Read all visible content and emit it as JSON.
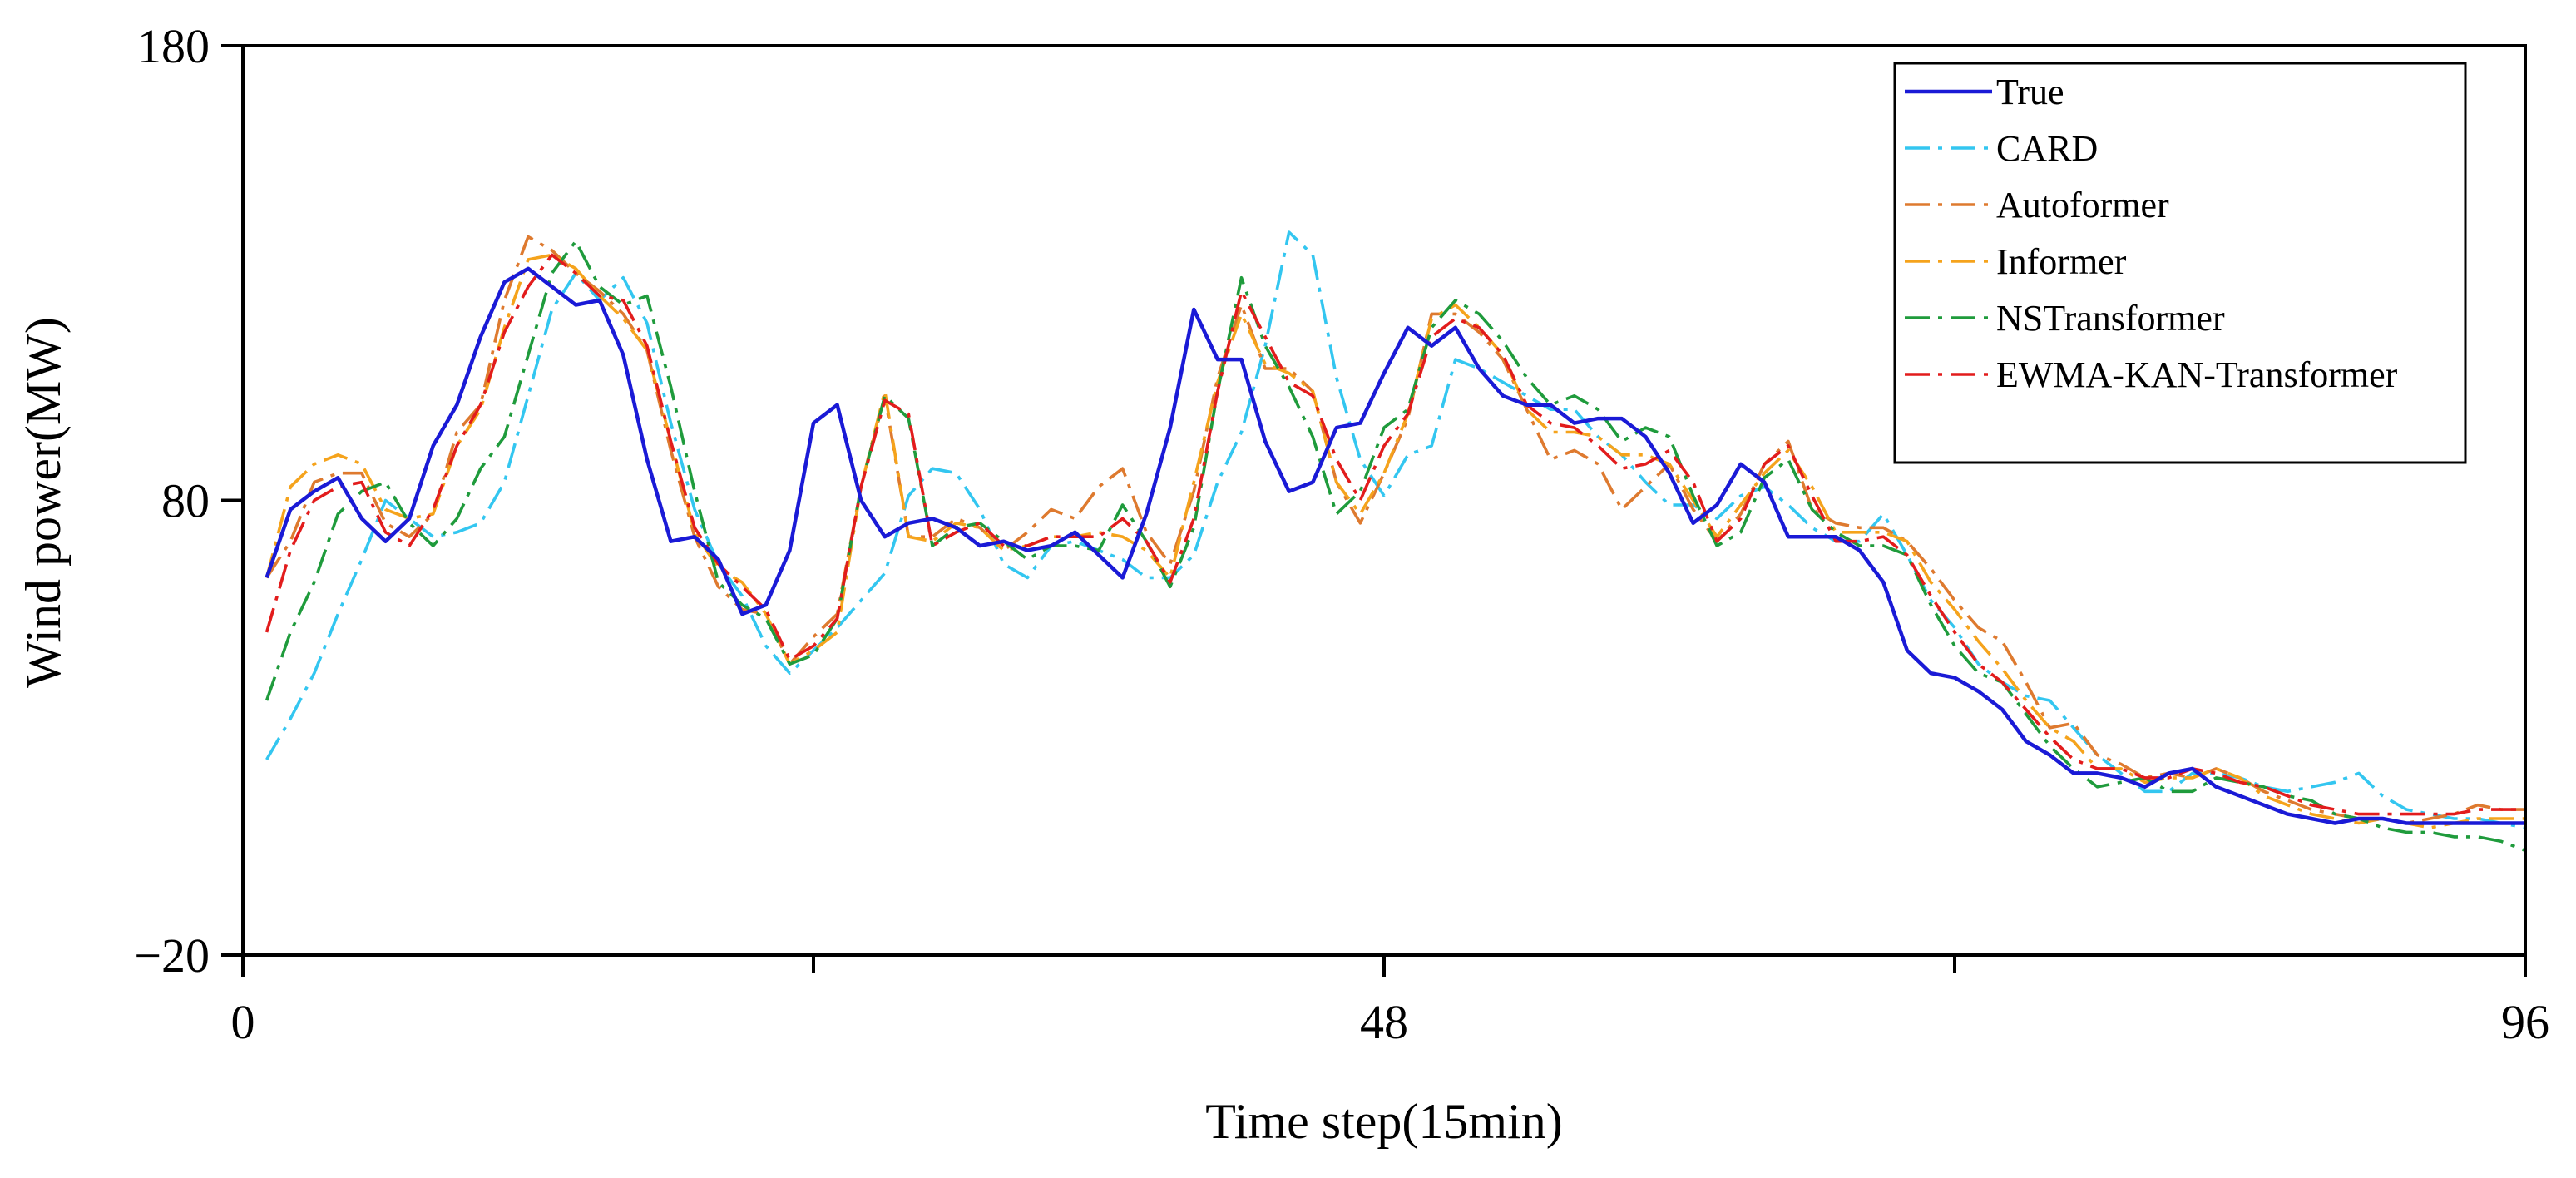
{
  "chart_data": {
    "type": "line",
    "title": "",
    "xlabel": "Time step(15min)",
    "ylabel": "Wind power(MW)",
    "xlim": [
      0,
      96
    ],
    "ylim": [
      -20,
      180
    ],
    "x_major_ticks": [
      0,
      48,
      96
    ],
    "x_minor_ticks": [
      24,
      72
    ],
    "y_major_ticks": [
      -20,
      80,
      180
    ],
    "x_tick_labels": [
      "0",
      "48",
      "96"
    ],
    "y_tick_labels": [
      "−20",
      "80",
      "180"
    ],
    "legend_position": "top-right",
    "grid": false,
    "x": [
      1,
      2,
      3,
      4,
      5,
      6,
      7,
      8,
      9,
      10,
      11,
      12,
      13,
      14,
      15,
      16,
      17,
      18,
      19,
      20,
      21,
      22,
      23,
      24,
      25,
      26,
      27,
      28,
      29,
      30,
      31,
      32,
      33,
      34,
      35,
      36,
      37,
      38,
      39,
      40,
      41,
      42,
      43,
      44,
      45,
      46,
      47,
      48,
      49,
      50,
      51,
      52,
      53,
      54,
      55,
      56,
      57,
      58,
      59,
      60,
      61,
      62,
      63,
      64,
      65,
      66,
      67,
      68,
      69,
      70,
      71,
      72,
      73,
      74,
      75,
      76,
      77,
      78,
      79,
      80,
      81,
      82,
      83,
      84,
      85,
      86,
      87,
      88,
      89,
      90,
      91,
      92,
      93,
      94,
      95,
      96
    ],
    "series": [
      {
        "name": "True",
        "color": "#1a1ad6",
        "dash": "solid",
        "values": [
          63,
          78,
          82,
          85,
          76,
          71,
          76,
          92,
          101,
          116,
          128,
          131,
          127,
          123,
          124,
          112,
          89,
          71,
          72,
          67,
          55,
          57,
          69,
          97,
          101,
          80,
          72,
          75,
          76,
          74,
          70,
          71,
          69,
          70,
          73,
          68,
          63,
          77,
          96,
          122,
          111,
          111,
          93,
          82,
          84,
          96,
          97,
          108,
          118,
          114,
          118,
          109,
          103,
          101,
          101,
          97,
          98,
          98,
          94,
          86,
          75,
          79,
          88,
          84,
          72,
          72,
          72,
          69,
          62,
          47,
          42,
          41,
          38,
          34,
          27,
          24,
          20,
          20,
          19,
          17,
          20,
          21,
          17,
          15,
          13,
          11,
          10,
          9,
          10,
          10,
          9,
          9,
          9,
          9,
          9,
          9
        ]
      },
      {
        "name": "CARD",
        "color": "#33c6f0",
        "dash": "dashdot",
        "values": [
          23,
          32,
          42,
          55,
          67,
          80,
          76,
          72,
          73,
          75,
          84,
          103,
          122,
          130,
          124,
          129,
          119,
          97,
          78,
          66,
          59,
          48,
          42,
          47,
          52,
          58,
          64,
          81,
          87,
          86,
          78,
          66,
          63,
          70,
          71,
          69,
          67,
          63,
          63,
          68,
          84,
          95,
          114,
          139,
          134,
          107,
          89,
          81,
          90,
          92,
          111,
          109,
          106,
          103,
          100,
          100,
          94,
          90,
          84,
          79,
          79,
          76,
          81,
          83,
          79,
          74,
          71,
          71,
          77,
          68,
          58,
          52,
          44,
          40,
          37,
          36,
          30,
          24,
          20,
          16,
          16,
          20,
          20,
          19,
          17,
          16,
          17,
          18,
          20,
          15,
          12,
          11,
          10,
          10,
          9,
          8
        ]
      },
      {
        "name": "Autoformer",
        "color": "#de7a2f",
        "dash": "dashdot",
        "values": [
          63,
          71,
          84,
          86,
          86,
          75,
          72,
          77,
          95,
          101,
          124,
          138,
          135,
          130,
          126,
          121,
          113,
          91,
          72,
          61,
          56,
          55,
          44,
          50,
          55,
          83,
          103,
          72,
          72,
          76,
          74,
          69,
          73,
          78,
          76,
          83,
          87,
          73,
          66,
          82,
          107,
          123,
          109,
          109,
          104,
          84,
          75,
          86,
          98,
          121,
          121,
          117,
          111,
          100,
          89,
          91,
          88,
          78,
          83,
          88,
          78,
          71,
          77,
          88,
          93,
          78,
          75,
          74,
          74,
          71,
          65,
          58,
          52,
          49,
          40,
          30,
          31,
          24,
          22,
          19,
          20,
          19,
          21,
          19,
          16,
          14,
          12,
          11,
          10,
          10,
          9,
          10,
          11,
          13,
          12,
          12
        ]
      },
      {
        "name": "Informer",
        "color": "#f5a31c",
        "dash": "dashdot",
        "values": [
          63,
          83,
          88,
          90,
          88,
          78,
          76,
          77,
          92,
          100,
          118,
          133,
          134,
          131,
          125,
          120,
          113,
          93,
          73,
          65,
          62,
          55,
          44,
          47,
          51,
          83,
          104,
          72,
          71,
          75,
          74,
          69,
          70,
          72,
          72,
          73,
          72,
          69,
          63,
          84,
          106,
          121,
          110,
          108,
          104,
          84,
          77,
          86,
          99,
          120,
          123,
          118,
          112,
          100,
          95,
          95,
          94,
          90,
          90,
          88,
          80,
          72,
          79,
          86,
          91,
          83,
          73,
          73,
          73,
          71,
          62,
          56,
          49,
          43,
          36,
          30,
          27,
          21,
          21,
          18,
          19,
          19,
          21,
          19,
          15,
          13,
          11,
          10,
          9,
          10,
          9,
          8,
          9,
          10,
          10,
          10
        ]
      },
      {
        "name": "NSTransformer",
        "color": "#1f9b3c",
        "dash": "dashdot",
        "values": [
          36,
          51,
          62,
          77,
          82,
          84,
          75,
          70,
          76,
          87,
          94,
          112,
          130,
          137,
          127,
          123,
          125,
          105,
          82,
          62,
          57,
          54,
          44,
          46,
          54,
          83,
          103,
          98,
          70,
          74,
          75,
          71,
          67,
          70,
          70,
          69,
          79,
          71,
          61,
          74,
          104,
          129,
          114,
          105,
          94,
          77,
          82,
          96,
          100,
          118,
          124,
          121,
          115,
          107,
          101,
          103,
          100,
          93,
          96,
          94,
          81,
          70,
          73,
          85,
          89,
          78,
          73,
          70,
          70,
          68,
          57,
          48,
          42,
          40,
          33,
          26,
          21,
          17,
          18,
          19,
          16,
          16,
          19,
          18,
          17,
          15,
          14,
          11,
          10,
          8,
          7,
          7,
          6,
          6,
          5,
          3
        ]
      },
      {
        "name": "EWMA-KAN-Transformer",
        "color": "#e21c1c",
        "dash": "dashdot",
        "values": [
          51,
          69,
          80,
          83,
          84,
          73,
          70,
          78,
          92,
          101,
          117,
          127,
          134,
          130,
          125,
          124,
          114,
          93,
          74,
          66,
          61,
          56,
          45,
          48,
          54,
          83,
          102,
          99,
          70,
          73,
          75,
          70,
          70,
          72,
          72,
          72,
          76,
          71,
          62,
          76,
          104,
          126,
          116,
          106,
          103,
          89,
          80,
          92,
          99,
          116,
          120,
          118,
          112,
          101,
          97,
          96,
          92,
          87,
          88,
          91,
          84,
          71,
          76,
          88,
          92,
          81,
          71,
          71,
          72,
          68,
          59,
          51,
          44,
          40,
          34,
          28,
          23,
          21,
          21,
          19,
          19,
          21,
          20,
          18,
          17,
          15,
          13,
          12,
          11,
          11,
          11,
          11,
          11,
          12,
          12,
          12
        ]
      }
    ]
  }
}
